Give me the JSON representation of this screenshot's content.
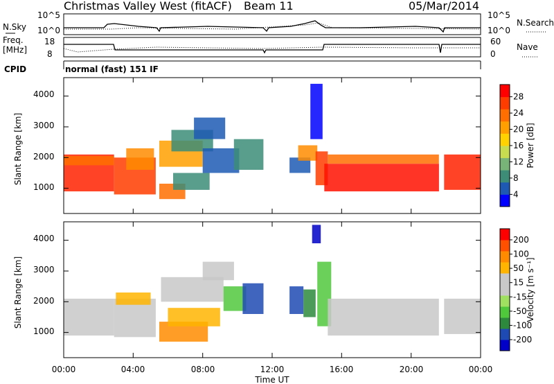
{
  "header": {
    "site": "Christmas Valley West (fitACF)",
    "beam": "Beam 11",
    "date": "05/Mar/2014",
    "cpid_label": "CPID",
    "cpid_value": "normal (fast) 151 IF"
  },
  "top_panels": {
    "nsky_label": "N.Sky",
    "nsearch_label": "N.Search",
    "noise_ticks": [
      "10^5",
      "10^0"
    ],
    "freq_label": "Freq.",
    "freq_unit": "[MHz]",
    "freq_ticks": [
      "18",
      "8"
    ],
    "nave_label": "Nave",
    "nave_ticks": [
      "60",
      "0"
    ]
  },
  "axes": {
    "ylabel": "Slant Range [km]",
    "yticks": [
      "4000",
      "3000",
      "2000",
      "1000"
    ],
    "xlabel": "Time UT",
    "xticks": [
      "00:00",
      "04:00",
      "08:00",
      "12:00",
      "16:00",
      "20:00",
      "00:00"
    ]
  },
  "colorbars": {
    "power": {
      "label": "Power [dB]",
      "ticks": [
        "28",
        "24",
        "20",
        "16",
        "12",
        "8",
        "4"
      ],
      "colors": [
        "#0000ff",
        "#1e5ab4",
        "#3c8c78",
        "#78b478",
        "#c8dc50",
        "#ffd200",
        "#ffa000",
        "#ff6e00",
        "#ff3c00",
        "#ff0000"
      ]
    },
    "velocity": {
      "label": "Velocity [m s⁻¹]",
      "ticks": [
        "200",
        "100",
        "50",
        "15",
        "-15",
        "-50",
        "-100",
        "-200"
      ],
      "colors": [
        "#0000c8",
        "#1e4ab4",
        "#2d8a3c",
        "#50c83c",
        "#a0e060",
        "#c8c8c8",
        "#c8c8c8",
        "#ffb400",
        "#ff8c00",
        "#ff5000",
        "#ff0000"
      ]
    }
  },
  "chart_data": [
    {
      "type": "heatmap",
      "panel": "power",
      "x_unit": "hours UT",
      "y_unit": "km",
      "xlim": [
        0,
        24
      ],
      "ylim": [
        180,
        4600
      ],
      "zlim": [
        0,
        32
      ],
      "patches": [
        {
          "t0": 0.0,
          "t1": 2.9,
          "r0": 900,
          "r1": 2100,
          "color": "#ff2200"
        },
        {
          "t0": 0.0,
          "t1": 2.9,
          "r0": 1750,
          "r1": 2050,
          "color": "#ff6e00"
        },
        {
          "t0": 2.9,
          "t1": 5.3,
          "r0": 800,
          "r1": 2000,
          "color": "#ff3c00"
        },
        {
          "t0": 3.6,
          "t1": 5.2,
          "r0": 1600,
          "r1": 2300,
          "color": "#ff8c00"
        },
        {
          "t0": 5.5,
          "t1": 8.0,
          "r0": 1700,
          "r1": 2550,
          "color": "#ffa000"
        },
        {
          "t0": 6.2,
          "t1": 8.6,
          "r0": 2200,
          "r1": 2900,
          "color": "#3c8c78"
        },
        {
          "t0": 5.5,
          "t1": 7.0,
          "r0": 650,
          "r1": 1150,
          "color": "#ff6e00"
        },
        {
          "t0": 6.3,
          "t1": 8.4,
          "r0": 950,
          "r1": 1500,
          "color": "#3c8c78"
        },
        {
          "t0": 7.5,
          "t1": 9.3,
          "r0": 2600,
          "r1": 3300,
          "color": "#1e5ab4"
        },
        {
          "t0": 8.0,
          "t1": 10.1,
          "r0": 1500,
          "r1": 2300,
          "color": "#1e5ab4"
        },
        {
          "t0": 9.8,
          "t1": 11.5,
          "r0": 1600,
          "r1": 2600,
          "color": "#3c8c78"
        },
        {
          "t0": 13.0,
          "t1": 14.2,
          "r0": 1500,
          "r1": 2000,
          "color": "#1e5ab4"
        },
        {
          "t0": 13.5,
          "t1": 14.6,
          "r0": 1900,
          "r1": 2400,
          "color": "#ff8c00"
        },
        {
          "t0": 14.2,
          "t1": 14.9,
          "r0": 2600,
          "r1": 4400,
          "color": "#0000ff"
        },
        {
          "t0": 14.5,
          "t1": 15.2,
          "r0": 1100,
          "r1": 2200,
          "color": "#ff3c00"
        },
        {
          "t0": 15.0,
          "t1": 21.6,
          "r0": 900,
          "r1": 1800,
          "color": "#ff1100"
        },
        {
          "t0": 15.2,
          "t1": 21.6,
          "r0": 1800,
          "r1": 2100,
          "color": "#ff6e00"
        },
        {
          "t0": 21.9,
          "t1": 24.0,
          "r0": 950,
          "r1": 2100,
          "color": "#ff2200"
        }
      ]
    },
    {
      "type": "heatmap",
      "panel": "velocity",
      "x_unit": "hours UT",
      "y_unit": "km",
      "xlim": [
        0,
        24
      ],
      "ylim": [
        180,
        4600
      ],
      "zlim": [
        -200,
        200
      ],
      "patches": [
        {
          "t0": 0.0,
          "t1": 2.9,
          "r0": 900,
          "r1": 2100,
          "color": "#c8c8c8"
        },
        {
          "t0": 2.9,
          "t1": 5.3,
          "r0": 850,
          "r1": 2100,
          "color": "#c8c8c8"
        },
        {
          "t0": 3.0,
          "t1": 5.0,
          "r0": 1900,
          "r1": 2300,
          "color": "#ffb400"
        },
        {
          "t0": 5.5,
          "t1": 8.3,
          "r0": 700,
          "r1": 1350,
          "color": "#ff8c00"
        },
        {
          "t0": 6.0,
          "t1": 9.0,
          "r0": 1200,
          "r1": 1800,
          "color": "#ffb400"
        },
        {
          "t0": 5.6,
          "t1": 9.2,
          "r0": 2000,
          "r1": 2800,
          "color": "#c8c8c8"
        },
        {
          "t0": 8.0,
          "t1": 9.8,
          "r0": 2700,
          "r1": 3300,
          "color": "#c8c8c8"
        },
        {
          "t0": 9.2,
          "t1": 10.5,
          "r0": 1700,
          "r1": 2500,
          "color": "#50c83c"
        },
        {
          "t0": 10.3,
          "t1": 11.5,
          "r0": 1600,
          "r1": 2600,
          "color": "#1e4ab4"
        },
        {
          "t0": 13.0,
          "t1": 13.8,
          "r0": 1600,
          "r1": 2500,
          "color": "#1e4ab4"
        },
        {
          "t0": 13.8,
          "t1": 14.5,
          "r0": 1500,
          "r1": 2400,
          "color": "#2d8a3c"
        },
        {
          "t0": 14.3,
          "t1": 14.8,
          "r0": 3900,
          "r1": 4500,
          "color": "#0000c8"
        },
        {
          "t0": 14.6,
          "t1": 15.4,
          "r0": 1200,
          "r1": 3300,
          "color": "#50c83c"
        },
        {
          "t0": 15.2,
          "t1": 21.6,
          "r0": 900,
          "r1": 2100,
          "color": "#c8c8c8"
        },
        {
          "t0": 21.9,
          "t1": 24.0,
          "r0": 950,
          "r1": 2100,
          "color": "#c8c8c8"
        }
      ]
    }
  ]
}
